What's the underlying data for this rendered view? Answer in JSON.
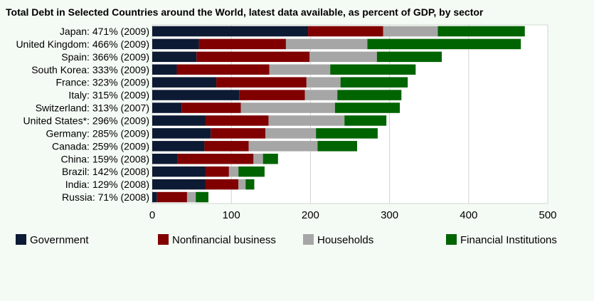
{
  "chart_data": {
    "type": "bar",
    "orientation": "horizontal",
    "stacked": true,
    "title": "Total Debt in Selected Countries around the World, latest data available, as percent of GDP, by sector",
    "categories": [
      "Japan: 471% (2009)",
      "United Kingdom: 466% (2009)",
      "Spain: 366% (2009)",
      "South Korea: 333% (2009)",
      "France: 323% (2009)",
      "Italy: 315% (2009)",
      "Switzerland: 313% (2007)",
      "United States*: 296% (2009)",
      "Germany: 285% (2009)",
      "Canada: 259% (2009)",
      "China: 159% (2008)",
      "Brazil: 142% (2008)",
      "India: 129% (2008)",
      "Russia: 71% (2008)"
    ],
    "series": [
      {
        "name": "Government",
        "color": "#0d1a33",
        "values": [
          197,
          59,
          56,
          31,
          81,
          110,
          37,
          67,
          74,
          66,
          32,
          67,
          67,
          6
        ]
      },
      {
        "name": "Nonfinancial business",
        "color": "#800000",
        "values": [
          95,
          110,
          143,
          117,
          114,
          83,
          75,
          80,
          69,
          56,
          96,
          30,
          42,
          38
        ]
      },
      {
        "name": "Households",
        "color": "#a6a6a6",
        "values": [
          69,
          103,
          85,
          77,
          43,
          41,
          119,
          96,
          64,
          87,
          12,
          12,
          9,
          11
        ]
      },
      {
        "name": "Financial Institutions",
        "color": "#006400",
        "values": [
          110,
          194,
          82,
          108,
          85,
          81,
          82,
          53,
          78,
          50,
          19,
          33,
          11,
          16
        ]
      }
    ],
    "xlim": [
      0,
      500
    ],
    "xticks": [
      0,
      100,
      200,
      300,
      400,
      500
    ],
    "xlabel": "",
    "ylabel": "",
    "grid": true,
    "legend_position": "bottom"
  }
}
